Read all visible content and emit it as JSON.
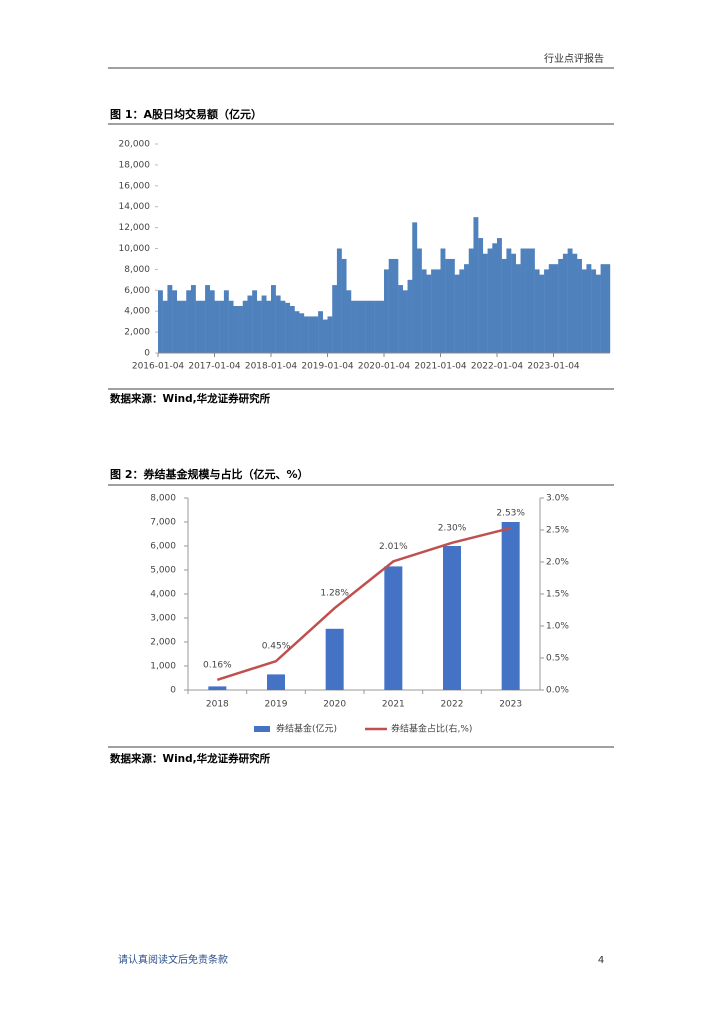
{
  "header": {
    "report_type": "行业点评报告"
  },
  "footer": {
    "disclaimer": "请认真阅读文后免责条款",
    "page": "4"
  },
  "chart_data": [
    {
      "type": "bar",
      "title": "图 1：A股日均交易额（亿元）",
      "source": "数据来源：Wind,华龙证券研究所",
      "color": "#4f81bd",
      "categories": [
        "2016-01-04",
        null,
        null,
        null,
        null,
        null,
        null,
        null,
        null,
        null,
        null,
        null,
        "2017-01-04",
        null,
        null,
        null,
        null,
        null,
        null,
        null,
        null,
        null,
        null,
        null,
        "2018-01-04",
        null,
        null,
        null,
        null,
        null,
        null,
        null,
        null,
        null,
        null,
        null,
        "2019-01-04",
        null,
        null,
        null,
        null,
        null,
        null,
        null,
        null,
        null,
        null,
        null,
        "2020-01-04",
        null,
        null,
        null,
        null,
        null,
        null,
        null,
        null,
        null,
        null,
        null,
        "2021-01-04",
        null,
        null,
        null,
        null,
        null,
        null,
        null,
        null,
        null,
        null,
        null,
        "2022-01-04",
        null,
        null,
        null,
        null,
        null,
        null,
        null,
        null,
        null,
        null,
        null,
        "2023-01-04",
        null,
        null,
        null,
        null,
        null,
        null,
        null,
        null,
        null,
        null,
        null
      ],
      "values": [
        6000,
        5000,
        6500,
        6000,
        5000,
        5000,
        6000,
        6500,
        5000,
        5000,
        6500,
        6000,
        5000,
        5000,
        6000,
        5000,
        4500,
        4500,
        5000,
        5500,
        6000,
        5000,
        5500,
        5000,
        6500,
        5500,
        5000,
        4800,
        4500,
        4000,
        3800,
        3500,
        3500,
        3500,
        4000,
        3200,
        3500,
        6500,
        10000,
        9000,
        6000,
        5000,
        5000,
        5000,
        5000,
        5000,
        5000,
        5000,
        8000,
        9000,
        9000,
        6500,
        6000,
        7000,
        12500,
        10000,
        8000,
        7500,
        8000,
        8000,
        10000,
        9000,
        9000,
        7500,
        8000,
        8500,
        10000,
        13000,
        11000,
        9500,
        10000,
        10500,
        11000,
        9000,
        10000,
        9500,
        8500,
        10000,
        10000,
        10000,
        8000,
        7500,
        8000,
        8500,
        8500,
        9000,
        9500,
        10000,
        9500,
        9000,
        8000,
        8500,
        8000,
        7500,
        8500,
        8500
      ],
      "ylim": [
        0,
        20000
      ],
      "yticks": [
        0,
        {
          "value": 2000,
          "label": "2,000"
        },
        {
          "value": 4000,
          "label": "4,000"
        },
        {
          "value": 6000,
          "label": "6,000"
        },
        {
          "value": 8000,
          "label": "8,000"
        },
        {
          "value": 10000,
          "label": "10,000"
        },
        {
          "value": 12000,
          "label": "12,000"
        },
        {
          "value": 14000,
          "label": "14,000"
        },
        {
          "value": 16000,
          "label": "16,000"
        },
        {
          "value": 18000,
          "label": "18,000"
        },
        {
          "value": 20000,
          "label": "20,000"
        }
      ]
    },
    {
      "type": "bar-line",
      "title": "图 2：券结基金规模与占比（亿元、%）",
      "source": "数据来源：Wind,华龙证券研究所",
      "categories": [
        "2018",
        "2019",
        "2020",
        "2021",
        "2022",
        "2023"
      ],
      "series": [
        {
          "name": "券结基金(亿元)",
          "color": "#4472c4",
          "values": [
            150,
            650,
            2550,
            5150,
            6000,
            7000
          ]
        },
        {
          "name": "券结基金占比(右,%)",
          "color": "#c0504d",
          "axis": "y2",
          "values": [
            0.16,
            0.45,
            1.28,
            2.01,
            2.3,
            2.53
          ],
          "value_labels": [
            "0.16%",
            "0.45%",
            "1.28%",
            "2.01%",
            "2.30%",
            "2.53%"
          ]
        }
      ],
      "ylim": [
        0,
        8000
      ],
      "yticks": [
        0,
        {
          "value": 1000,
          "label": "1,000"
        },
        {
          "value": 2000,
          "label": "2,000"
        },
        {
          "value": 3000,
          "label": "3,000"
        },
        {
          "value": 4000,
          "label": "4,000"
        },
        {
          "value": 5000,
          "label": "5,000"
        },
        {
          "value": 6000,
          "label": "6,000"
        },
        {
          "value": 7000,
          "label": "7,000"
        },
        {
          "value": 8000,
          "label": "8,000"
        }
      ],
      "y2lim": [
        0,
        3
      ],
      "y2ticks": [
        {
          "value": 0,
          "label": "0.0%"
        },
        {
          "value": 0.5,
          "label": "0.5%"
        },
        {
          "value": 1,
          "label": "1.0%"
        },
        {
          "value": 1.5,
          "label": "1.5%"
        },
        {
          "value": 2,
          "label": "2.0%"
        },
        {
          "value": 2.5,
          "label": "2.5%"
        },
        {
          "value": 3,
          "label": "3.0%"
        }
      ]
    }
  ]
}
